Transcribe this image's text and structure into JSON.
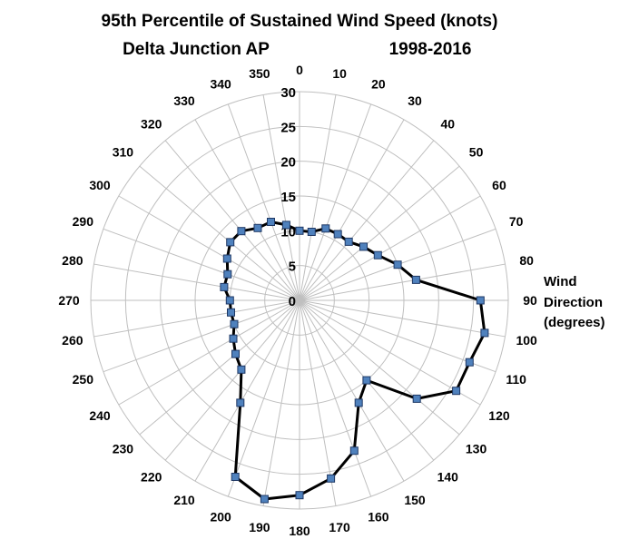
{
  "chart_data": {
    "type": "radar",
    "title": "95th Percentile of Sustained Wind Speed (knots)",
    "subtitle_station": "Delta Junction AP",
    "subtitle_years": "1998-2016",
    "axis_label_line1": "Wind",
    "axis_label_line2": "Direction",
    "axis_label_line3": "(degrees)",
    "radial_ticks": [
      0,
      5,
      10,
      15,
      20,
      25,
      30
    ],
    "radial_max": 30,
    "grid": true,
    "directions": [
      0,
      10,
      20,
      30,
      40,
      50,
      60,
      70,
      80,
      90,
      100,
      110,
      120,
      130,
      140,
      150,
      160,
      170,
      180,
      190,
      200,
      210,
      220,
      230,
      240,
      250,
      260,
      270,
      280,
      290,
      300,
      310,
      320,
      330,
      340,
      350
    ],
    "series": [
      {
        "color": "#4f81bd",
        "line_color": "#000000",
        "values": [
          10,
          10,
          11,
          11,
          11,
          12,
          13,
          15,
          17,
          26,
          27,
          26,
          26,
          22,
          15,
          17,
          23,
          26,
          28,
          29,
          27,
          17,
          13,
          12,
          11,
          10,
          10,
          10,
          11,
          11,
          12,
          13,
          13,
          12,
          12,
          11
        ]
      }
    ]
  }
}
